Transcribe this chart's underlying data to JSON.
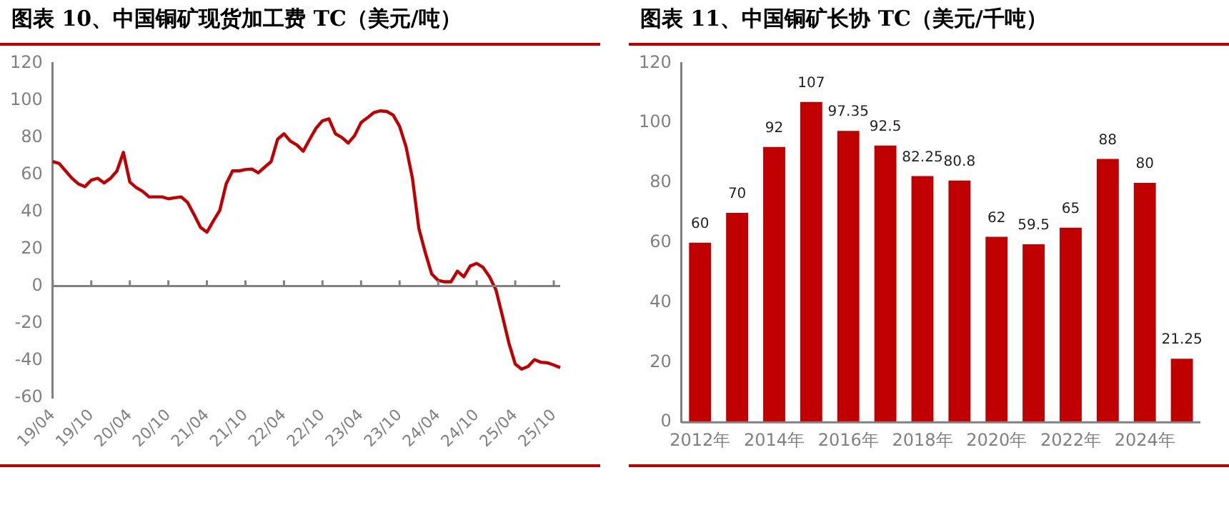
{
  "chart_data": [
    {
      "type": "line",
      "title": "图表 10、中国铜矿现货加工费 TC（美元/吨）",
      "categories": [
        "19/04",
        null,
        null,
        null,
        null,
        null,
        "19/10",
        null,
        null,
        null,
        null,
        null,
        "20/04",
        null,
        null,
        null,
        null,
        null,
        "20/10",
        null,
        null,
        null,
        null,
        null,
        "21/04",
        null,
        null,
        null,
        null,
        null,
        "21/10",
        null,
        null,
        null,
        null,
        null,
        "22/04",
        null,
        null,
        null,
        null,
        null,
        "22/10",
        null,
        null,
        null,
        null,
        null,
        "23/04",
        null,
        null,
        null,
        null,
        null,
        "23/10",
        null,
        null,
        null,
        null,
        null,
        "24/04",
        null,
        null,
        null,
        null,
        null,
        "24/10",
        null,
        null,
        null,
        null,
        null,
        "25/04",
        null,
        null,
        null,
        null,
        null,
        "25/10",
        null
      ],
      "series": [
        {
          "color": "#c00000",
          "values": [
            67,
            66,
            62,
            58,
            55,
            53.5,
            57,
            58,
            55.5,
            58,
            62,
            72,
            56,
            53,
            51,
            48,
            48,
            48,
            47,
            47.5,
            48,
            45,
            38.5,
            31.6,
            29,
            35,
            40.7,
            55,
            62,
            62,
            62.7,
            63,
            61,
            64,
            67,
            79,
            82,
            78,
            76,
            72.6,
            79,
            85,
            89,
            90,
            82,
            80,
            77,
            81,
            88,
            90.6,
            93.4,
            94.3,
            94,
            92,
            86,
            75,
            58,
            31,
            18,
            6.5,
            3,
            2.3,
            2.3,
            8,
            5,
            10.8,
            12.2,
            10,
            5,
            -2,
            -16,
            -30.5,
            -42,
            -44.7,
            -43.3,
            -39.6,
            -41,
            -41.3,
            -42.5,
            -43.9
          ]
        }
      ],
      "ylim": [
        -60,
        120
      ],
      "yticks": [
        -60,
        -40,
        -20,
        0,
        20,
        40,
        60,
        80,
        100,
        120
      ],
      "marker": "none"
    },
    {
      "type": "bar",
      "title": "图表 11、中国铜矿长协 TC（美元/千吨）",
      "categories": [
        "2012年",
        null,
        "2014年",
        null,
        "2016年",
        null,
        "2018年",
        null,
        "2020年",
        null,
        "2022年",
        null,
        "2024年",
        null
      ],
      "series": [
        {
          "color": "#c00000",
          "values": [
            60,
            70,
            92,
            107,
            97.35,
            92.5,
            82.25,
            80.8,
            62,
            59.5,
            65,
            88,
            80,
            21.25
          ]
        }
      ],
      "ylim": [
        0,
        120
      ],
      "yticks": [
        0,
        20,
        40,
        60,
        80,
        100,
        120
      ],
      "grid": false,
      "data_labels": true
    }
  ]
}
